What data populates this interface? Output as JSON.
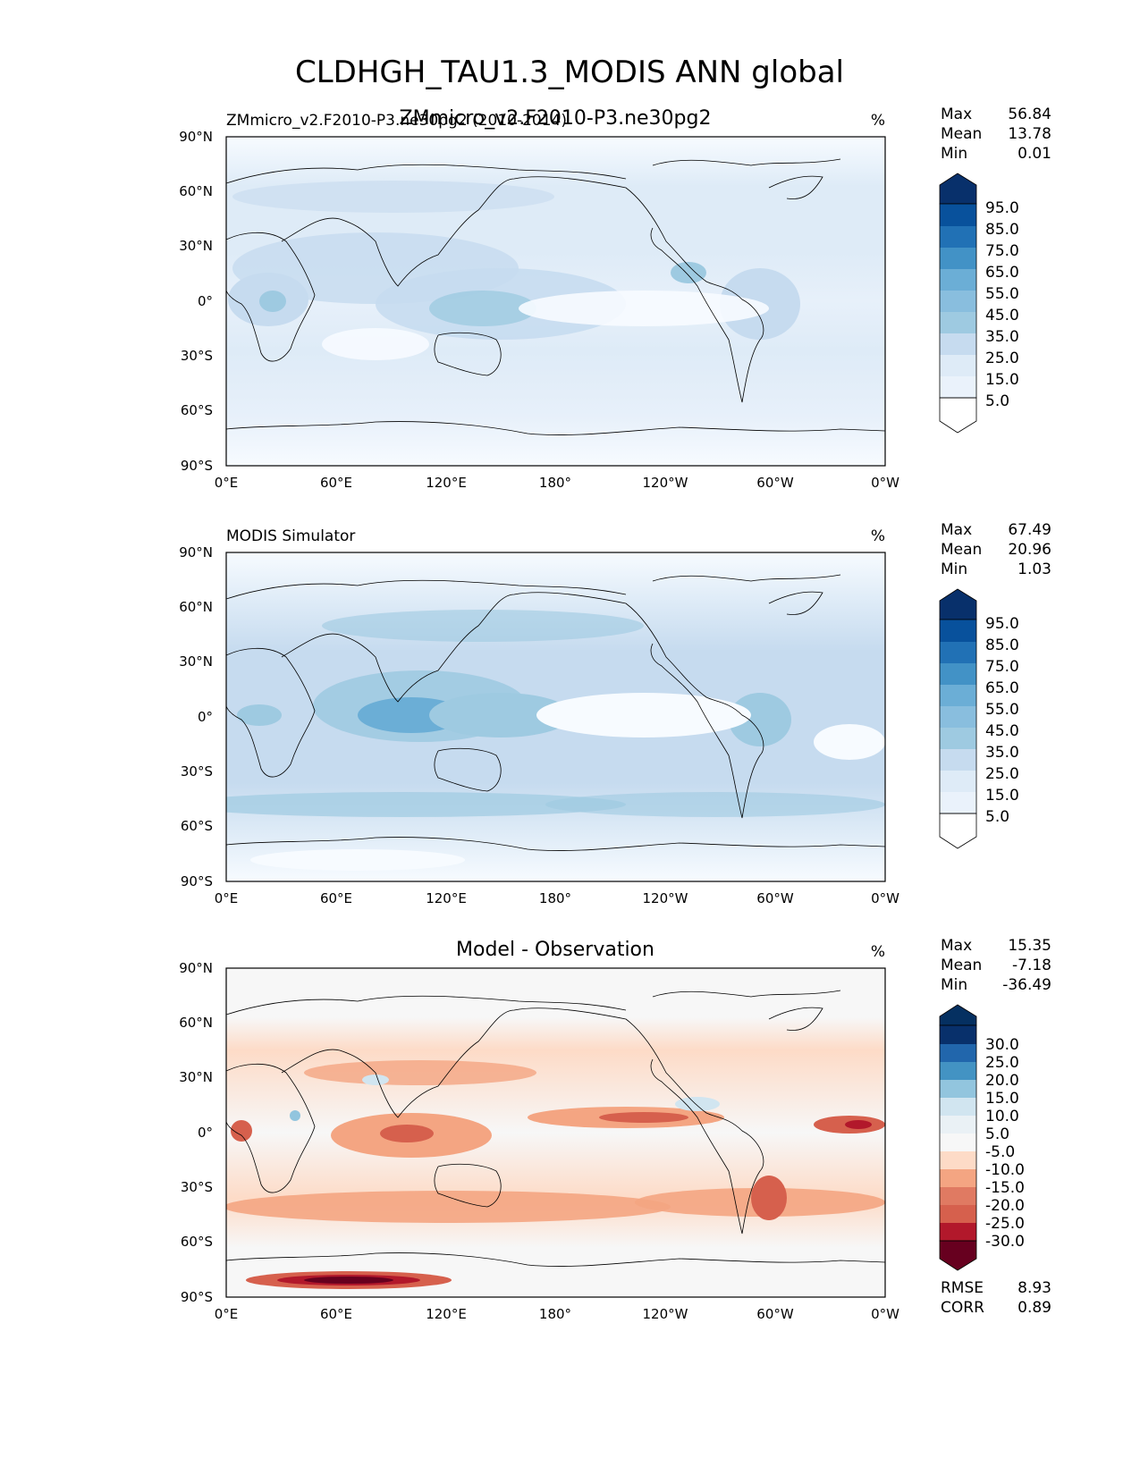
{
  "figure_title": "CLDHGH_TAU1.3_MODIS ANN global",
  "x_ticks": [
    "0°E",
    "60°E",
    "120°E",
    "180°",
    "120°W",
    "60°W",
    "0°W"
  ],
  "y_ticks": [
    "90°N",
    "60°N",
    "30°N",
    "0°",
    "30°S",
    "60°S",
    "90°S"
  ],
  "units": "%",
  "stat_labels": {
    "max": "Max",
    "mean": "Mean",
    "min": "Min",
    "rmse": "RMSE",
    "corr": "CORR"
  },
  "colors": {
    "blues": [
      "#f7fbff",
      "#deebf7",
      "#c6dbef",
      "#9ecae1",
      "#6baed6",
      "#4292c6",
      "#2171b5",
      "#08519c",
      "#08306b"
    ],
    "diff": [
      "#67001f",
      "#b2182b",
      "#d6604d",
      "#f4a582",
      "#fddbc7",
      "#f7f7f7",
      "#d1e5f0",
      "#92c5de",
      "#4393c3",
      "#2166ac",
      "#053061"
    ]
  },
  "chart_data": [
    {
      "type": "heatmap",
      "title_left": "ZMmicro_v2.F2010-P3.ne30pg2 (2010-2014)",
      "title_center": "ZMmicro_v2.F2010-P3.ne30pg2",
      "units": "%",
      "stats": {
        "max": "56.84",
        "mean": "13.78",
        "min": "0.01"
      },
      "colorbar_levels": [
        "95.0",
        "85.0",
        "75.0",
        "65.0",
        "55.0",
        "45.0",
        "35.0",
        "25.0",
        "15.0",
        "5.0"
      ],
      "xlim": [
        0,
        360
      ],
      "ylim": [
        -90,
        90
      ]
    },
    {
      "type": "heatmap",
      "title_left": "MODIS Simulator",
      "title_center": "",
      "units": "%",
      "stats": {
        "max": "67.49",
        "mean": "20.96",
        "min": "1.03"
      },
      "colorbar_levels": [
        "95.0",
        "85.0",
        "75.0",
        "65.0",
        "55.0",
        "45.0",
        "35.0",
        "25.0",
        "15.0",
        "5.0"
      ],
      "xlim": [
        0,
        360
      ],
      "ylim": [
        -90,
        90
      ]
    },
    {
      "type": "heatmap",
      "title_left": "",
      "title_center": "Model - Observation",
      "units": "%",
      "stats": {
        "max": "15.35",
        "mean": "-7.18",
        "min": "-36.49"
      },
      "colorbar_levels": [
        "30.0",
        "25.0",
        "20.0",
        "15.0",
        "10.0",
        "5.0",
        "-5.0",
        "-10.0",
        "-15.0",
        "-20.0",
        "-25.0",
        "-30.0"
      ],
      "rmse": "8.93",
      "corr": "0.89",
      "xlim": [
        0,
        360
      ],
      "ylim": [
        -90,
        90
      ]
    }
  ]
}
